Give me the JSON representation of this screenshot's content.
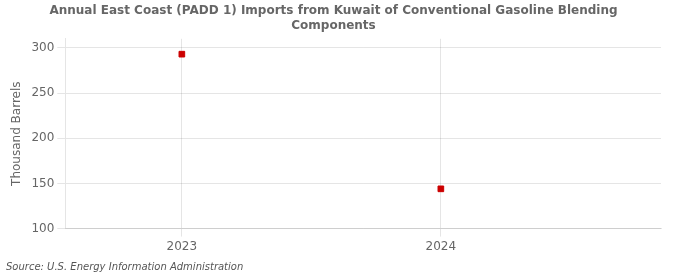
{
  "chart_data": {
    "type": "scatter",
    "title": "Annual East Coast (PADD 1) Imports from Kuwait of Conventional Gasoline Blending\nComponents",
    "ylabel": "Thousand Barrels",
    "source": "Source: U.S. Energy Information Administration",
    "x": [
      2023,
      2024
    ],
    "values": [
      293,
      144
    ],
    "color": "#cc0000",
    "marker": "square",
    "xlim": [
      2022.55,
      2024.85
    ],
    "xticks": [
      2023,
      2024
    ],
    "ylim": [
      100,
      310
    ],
    "yticks": [
      100,
      150,
      200,
      250,
      300
    ],
    "grid": true
  }
}
